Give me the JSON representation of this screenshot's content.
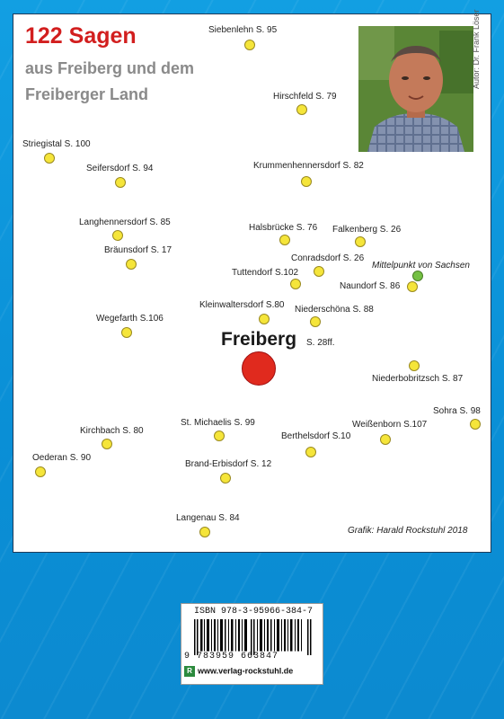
{
  "cover": {
    "title_line1": "122 Sagen",
    "title_line2": "aus Freiberg und dem",
    "title_line3": "Freiberger Land",
    "author": "Autor: Dr. Frank Löser",
    "credit": "Grafik: Harald Rockstuhl 2018",
    "center_name": "Freiberg",
    "center_page": "S. 28ff.",
    "midpoint": "Mittelpunkt von Sachsen"
  },
  "places": [
    "Siebenlehn S. 95",
    "Hirschfeld S. 79",
    "Striegistal S. 100",
    "Seifersdorf S. 94",
    "Krummenhennersdorf S. 82",
    "Langhennersdorf S. 85",
    "Halsbrücke S. 76",
    "Falkenberg S. 26",
    "Bräunsdorf S. 17",
    "Conradsdorf S. 26",
    "Tuttendorf S.102",
    "Naundorf S. 86",
    "Kleinwaltersdorf S.80",
    "Niederschöna S. 88",
    "Wegefarth S.106",
    "Niederbobritzsch S. 87",
    "Sohra S. 98",
    "St. Michaelis S. 99",
    "Weißenborn S.107",
    "Kirchbach S. 80",
    "Berthelsdorf S.10",
    "Oederan S. 90",
    "Brand-Erbisdorf S. 12",
    "Langenau S. 84"
  ],
  "barcode": {
    "isbn": "ISBN 978-3-95966-384-7",
    "digits": "9 783959 663847",
    "publisher": "www.verlag-rockstuhl.de",
    "logo": "R"
  },
  "colors": {
    "background": "#129fe2",
    "title": "#d21e1e",
    "city_dot": "#e02a1e",
    "place_dot": "#f5e53a",
    "midpoint_dot": "#74c043"
  }
}
